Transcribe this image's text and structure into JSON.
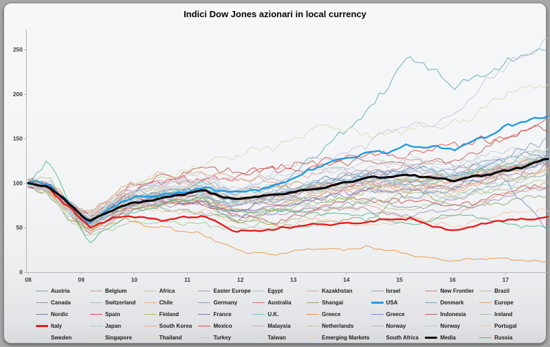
{
  "colors": {
    "page_background": "#a7a8aa",
    "card_background": "#f3f4f6",
    "axis": "#b0b4b8",
    "tick_label": "#3a3a3c",
    "usa_accent": "#1e9be2",
    "italy_accent": "#e81b1d",
    "media_accent": "#0a0a0a"
  },
  "chart_data": {
    "type": "line",
    "title": "Indici Dow Jones azionari in local currency",
    "xlabel": "",
    "ylabel": "",
    "grid": false,
    "legend_position": "bottom",
    "x_axis": {
      "ticks": [
        "08",
        "09",
        "10",
        "11",
        "12",
        "13",
        "14",
        "15",
        "16",
        "17"
      ],
      "tick_years": [
        2008,
        2009,
        2010,
        2011,
        2012,
        2013,
        2014,
        2015,
        2016,
        2017
      ],
      "range": [
        2008,
        2017.9
      ]
    },
    "y_axis": {
      "ticks": [
        0,
        50,
        100,
        150,
        200,
        250
      ],
      "range": [
        0,
        265
      ]
    },
    "x_keyframes": [
      2008.0,
      2008.4,
      2008.8,
      2009.15,
      2009.8,
      2010.5,
      2011.3,
      2011.9,
      2012.6,
      2013.5,
      2014.4,
      2015.2,
      2016.0,
      2016.9,
      2017.8
    ],
    "series": [
      {
        "name": "Austria",
        "color": "#8398b3",
        "width": 1,
        "values": [
          100,
          95,
          70,
          45,
          70,
          76,
          80,
          60,
          66,
          73,
          78,
          75,
          78,
          100,
          120
        ]
      },
      {
        "name": "Belgium",
        "color": "#c08f8f",
        "width": 1,
        "values": [
          100,
          92,
          72,
          54,
          72,
          80,
          85,
          72,
          80,
          95,
          112,
          125,
          118,
          122,
          120
        ]
      },
      {
        "name": "Africa",
        "color": "#b8c9a0",
        "width": 1,
        "values": [
          100,
          98,
          74,
          58,
          82,
          90,
          95,
          85,
          92,
          100,
          105,
          100,
          96,
          104,
          110
        ]
      },
      {
        "name": "Easter Europe",
        "color": "#a292b6",
        "width": 1,
        "values": [
          100,
          96,
          68,
          44,
          66,
          74,
          80,
          62,
          66,
          70,
          70,
          64,
          68,
          84,
          95
        ]
      },
      {
        "name": "Egypt",
        "color": "#a2c6d0",
        "width": 1,
        "values": [
          100,
          104,
          70,
          48,
          76,
          85,
          80,
          58,
          68,
          78,
          90,
          98,
          82,
          98,
          112
        ]
      },
      {
        "name": "Kazakhstan",
        "color": "#d9a587",
        "width": 1,
        "values": [
          100,
          96,
          62,
          42,
          68,
          78,
          85,
          68,
          68,
          70,
          74,
          58,
          64,
          86,
          100
        ]
      },
      {
        "name": "Israel",
        "color": "#8ba4c2",
        "width": 1,
        "values": [
          100,
          97,
          76,
          58,
          88,
          98,
          105,
          88,
          95,
          102,
          110,
          114,
          108,
          114,
          120
        ]
      },
      {
        "name": "New Frontier",
        "color": "#c67c7c",
        "width": 1,
        "values": [
          100,
          95,
          68,
          48,
          70,
          76,
          80,
          68,
          76,
          88,
          100,
          106,
          104,
          118,
          130
        ]
      },
      {
        "name": "Brazil",
        "color": "#b9c691",
        "width": 1,
        "values": [
          100,
          104,
          68,
          54,
          86,
          92,
          95,
          82,
          82,
          80,
          80,
          68,
          84,
          98,
          110
        ]
      },
      {
        "name": "Canada",
        "color": "#948cab",
        "width": 1,
        "values": [
          100,
          98,
          72,
          58,
          82,
          88,
          94,
          82,
          86,
          95,
          104,
          100,
          108,
          118,
          125
        ]
      },
      {
        "name": "Switzerland",
        "color": "#92bacd",
        "width": 1,
        "values": [
          100,
          94,
          76,
          64,
          82,
          86,
          85,
          78,
          84,
          100,
          110,
          112,
          104,
          118,
          130
        ]
      },
      {
        "name": "Chile",
        "color": "#deac80",
        "width": 1,
        "values": [
          100,
          96,
          78,
          68,
          95,
          108,
          115,
          102,
          104,
          96,
          94,
          90,
          94,
          112,
          125
        ]
      },
      {
        "name": "Germany",
        "color": "#7f9ec6",
        "width": 1,
        "values": [
          100,
          94,
          70,
          54,
          76,
          82,
          88,
          74,
          84,
          100,
          110,
          116,
          112,
          132,
          145
        ]
      },
      {
        "name": "Australia",
        "color": "#c96b60",
        "width": 1,
        "values": [
          100,
          96,
          70,
          58,
          82,
          86,
          90,
          78,
          86,
          96,
          100,
          100,
          104,
          114,
          120
        ]
      },
      {
        "name": "Shangai",
        "color": "#97a463",
        "width": 1,
        "values": [
          100,
          82,
          58,
          48,
          72,
          72,
          68,
          56,
          54,
          54,
          60,
          92,
          74,
          78,
          85
        ]
      },
      {
        "name": "USA",
        "color": "#1e9be2",
        "width": 2.4,
        "values": [
          100,
          97,
          76,
          57,
          80,
          86,
          95,
          88,
          97,
          118,
          135,
          140,
          138,
          160,
          175
        ]
      },
      {
        "name": "Denmark",
        "color": "#5fa9bd",
        "width": 1,
        "values": [
          100,
          98,
          74,
          54,
          84,
          92,
          100,
          88,
          96,
          130,
          185,
          240,
          212,
          228,
          252
        ]
      },
      {
        "name": "Europe",
        "color": "#e4a26c",
        "width": 1,
        "values": [
          100,
          95,
          70,
          54,
          72,
          78,
          80,
          68,
          74,
          84,
          94,
          100,
          94,
          108,
          115
        ]
      },
      {
        "name": "Nordic",
        "color": "#5e7cac",
        "width": 1,
        "values": [
          100,
          94,
          70,
          54,
          82,
          88,
          94,
          78,
          88,
          100,
          108,
          114,
          108,
          124,
          135
        ]
      },
      {
        "name": "Spain",
        "color": "#ca534f",
        "width": 1,
        "values": [
          100,
          95,
          74,
          60,
          84,
          80,
          78,
          62,
          56,
          72,
          84,
          80,
          74,
          88,
          95
        ]
      },
      {
        "name": "Finland",
        "color": "#a2b95f",
        "width": 1,
        "values": [
          100,
          92,
          64,
          48,
          72,
          78,
          80,
          58,
          66,
          80,
          90,
          104,
          104,
          118,
          130
        ]
      },
      {
        "name": "France",
        "color": "#8b69ac",
        "width": 1,
        "values": [
          100,
          94,
          70,
          54,
          74,
          76,
          80,
          66,
          72,
          84,
          90,
          94,
          92,
          108,
          120
        ]
      },
      {
        "name": "U.K.",
        "color": "#64bdd5",
        "width": 1,
        "values": [
          100,
          96,
          74,
          60,
          84,
          88,
          90,
          82,
          88,
          100,
          104,
          100,
          108,
          118,
          125
        ]
      },
      {
        "name": "Greece",
        "color": "#e6963f",
        "width": 1,
        "values": [
          100,
          92,
          64,
          46,
          58,
          52,
          40,
          26,
          20,
          26,
          28,
          18,
          14,
          14,
          13
        ]
      },
      {
        "name": "Greece",
        "color": "#7190c5",
        "width": 1,
        "values": [
          100,
          94,
          72,
          58,
          82,
          86,
          88,
          72,
          78,
          86,
          90,
          86,
          92,
          112,
          48
        ]
      },
      {
        "name": "Indonesia",
        "color": "#b95d4a",
        "width": 1,
        "values": [
          100,
          96,
          64,
          54,
          90,
          108,
          118,
          108,
          118,
          122,
          128,
          118,
          128,
          148,
          165
        ]
      },
      {
        "name": "Ireland",
        "color": "#a8c891",
        "width": 1,
        "values": [
          100,
          88,
          56,
          40,
          56,
          54,
          56,
          48,
          54,
          66,
          78,
          92,
          86,
          94,
          100
        ]
      },
      {
        "name": "Italy",
        "color": "#e81b1d",
        "width": 2.4,
        "values": [
          100,
          94,
          72,
          50,
          63,
          60,
          62,
          46,
          48,
          53,
          57,
          59,
          47,
          57,
          62
        ]
      },
      {
        "name": "Japan",
        "color": "#a7ccd9",
        "width": 1,
        "values": [
          100,
          92,
          70,
          60,
          74,
          72,
          68,
          62,
          66,
          92,
          100,
          122,
          104,
          120,
          130
        ]
      },
      {
        "name": "South Korea",
        "color": "#edac78",
        "width": 1,
        "values": [
          100,
          90,
          68,
          64,
          90,
          96,
          102,
          92,
          94,
          96,
          100,
          96,
          100,
          118,
          125
        ]
      },
      {
        "name": "Mexico",
        "color": "#e84545",
        "width": 1,
        "values": [
          100,
          96,
          72,
          62,
          92,
          100,
          106,
          108,
          115,
          120,
          130,
          135,
          140,
          152,
          168
        ]
      },
      {
        "name": "Malaysia",
        "color": "#d7a6a6",
        "width": 1,
        "values": [
          100,
          94,
          76,
          70,
          92,
          100,
          106,
          102,
          106,
          112,
          115,
          108,
          104,
          114,
          120
        ]
      },
      {
        "name": "Netherlands",
        "color": "#b5cca4",
        "width": 1,
        "values": [
          100,
          94,
          70,
          56,
          78,
          82,
          86,
          76,
          82,
          90,
          96,
          106,
          104,
          124,
          135
        ]
      },
      {
        "name": "Norway",
        "color": "#b5abcc",
        "width": 1,
        "values": [
          100,
          96,
          66,
          50,
          78,
          84,
          88,
          78,
          84,
          94,
          100,
          94,
          100,
          114,
          125
        ]
      },
      {
        "name": "Norway",
        "color": "#a7cce4",
        "width": 1,
        "values": [
          100,
          96,
          66,
          50,
          78,
          84,
          90,
          80,
          86,
          96,
          104,
          100,
          110,
          120,
          130
        ]
      },
      {
        "name": "Portugal",
        "color": "#f4c6a5",
        "width": 1,
        "values": [
          100,
          94,
          74,
          60,
          76,
          70,
          68,
          54,
          50,
          58,
          54,
          58,
          52,
          64,
          70
        ]
      },
      {
        "name": "Sweden",
        "color": "#c0cfdf",
        "width": 1,
        "values": [
          100,
          94,
          70,
          58,
          90,
          100,
          106,
          92,
          100,
          114,
          120,
          126,
          122,
          134,
          140
        ]
      },
      {
        "name": "Singapore",
        "color": "#e1c3c3",
        "width": 1,
        "values": [
          100,
          92,
          68,
          58,
          86,
          92,
          94,
          84,
          90,
          94,
          98,
          94,
          92,
          108,
          115
        ]
      },
      {
        "name": "Thailand",
        "color": "#d4ddaf",
        "width": 1,
        "values": [
          100,
          92,
          64,
          60,
          92,
          108,
          122,
          128,
          145,
          160,
          158,
          158,
          168,
          195,
          213
        ]
      },
      {
        "name": "Turkey",
        "color": "#c9c4db",
        "width": 1,
        "values": [
          100,
          90,
          62,
          52,
          86,
          100,
          108,
          88,
          110,
          128,
          145,
          165,
          175,
          225,
          264
        ]
      },
      {
        "name": "Taiwan",
        "color": "#b8d4e7",
        "width": 1,
        "values": [
          100,
          90,
          64,
          62,
          88,
          94,
          98,
          86,
          92,
          100,
          108,
          104,
          108,
          126,
          135
        ]
      },
      {
        "name": "Emerging Markets",
        "color": "#edcbb1",
        "width": 1,
        "values": [
          100,
          94,
          64,
          54,
          82,
          90,
          94,
          82,
          86,
          90,
          94,
          84,
          88,
          106,
          115
        ]
      },
      {
        "name": "South Africa",
        "color": "#c4ced9",
        "width": 1,
        "values": [
          100,
          96,
          72,
          62,
          86,
          92,
          98,
          96,
          104,
          114,
          122,
          118,
          118,
          128,
          135
        ]
      },
      {
        "name": "Media",
        "color": "#0a0a0a",
        "width": 3.2,
        "values": [
          100,
          96,
          74,
          57,
          76,
          82,
          92,
          82,
          86,
          95,
          105,
          110,
          102,
          113,
          126
        ]
      },
      {
        "name": "Russia",
        "color": "#54b989",
        "width": 1,
        "values": [
          100,
          128,
          70,
          32,
          64,
          74,
          84,
          68,
          68,
          68,
          62,
          54,
          64,
          58,
          48
        ]
      }
    ]
  }
}
